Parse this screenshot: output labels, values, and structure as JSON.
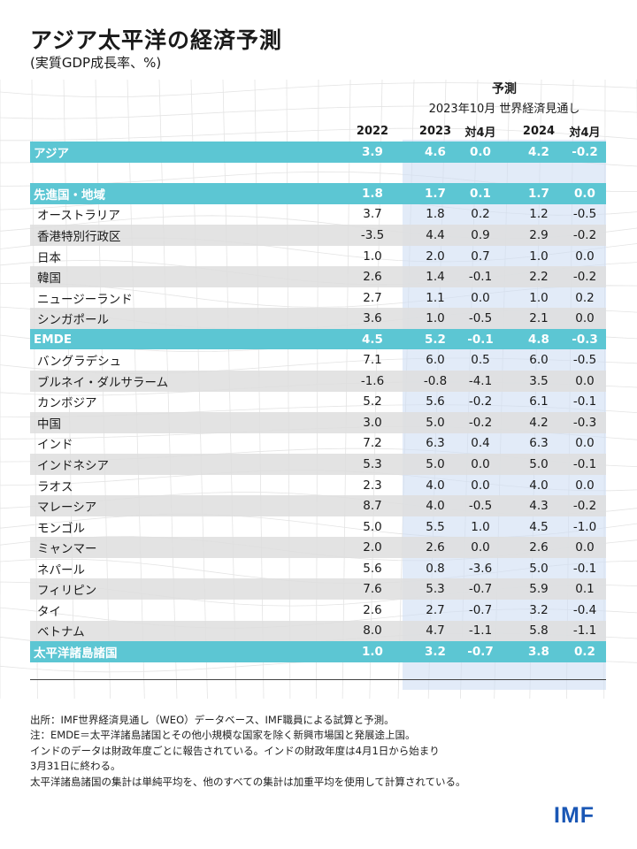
{
  "title": "アジア太平洋の経済予測",
  "subtitle": "(実質GDP成長率、%)",
  "forecast_header": {
    "label": "予測",
    "source": "2023年10月 世界経済見通し"
  },
  "columns": [
    "",
    "2022",
    "2023",
    "対4月",
    "2024",
    "対4月"
  ],
  "rows": [
    {
      "label": "アジア",
      "type": "total",
      "v": [
        "3.9",
        "4.6",
        "0.0",
        "4.2",
        "-0.2"
      ]
    },
    {
      "label": "",
      "type": "blank",
      "v": [
        "",
        "",
        "",
        "",
        ""
      ]
    },
    {
      "label": "先進国・地域",
      "type": "total",
      "v": [
        "1.8",
        "1.7",
        "0.1",
        "1.7",
        "0.0"
      ]
    },
    {
      "label": "オーストラリア",
      "type": "plain",
      "v": [
        "3.7",
        "1.8",
        "0.2",
        "1.2",
        "-0.5"
      ]
    },
    {
      "label": "香港特別行政区",
      "type": "alt",
      "v": [
        "-3.5",
        "4.4",
        "0.9",
        "2.9",
        "-0.2"
      ]
    },
    {
      "label": "日本",
      "type": "plain",
      "v": [
        "1.0",
        "2.0",
        "0.7",
        "1.0",
        "0.0"
      ]
    },
    {
      "label": "韓国",
      "type": "alt",
      "v": [
        "2.6",
        "1.4",
        "-0.1",
        "2.2",
        "-0.2"
      ]
    },
    {
      "label": "ニュージーランド",
      "type": "plain",
      "v": [
        "2.7",
        "1.1",
        "0.0",
        "1.0",
        "0.2"
      ]
    },
    {
      "label": "シンガポール",
      "type": "alt",
      "v": [
        "3.6",
        "1.0",
        "-0.5",
        "2.1",
        "0.0"
      ]
    },
    {
      "label": "EMDE",
      "type": "total",
      "v": [
        "4.5",
        "5.2",
        "-0.1",
        "4.8",
        "-0.3"
      ]
    },
    {
      "label": "バングラデシュ",
      "type": "plain",
      "v": [
        "7.1",
        "6.0",
        "0.5",
        "6.0",
        "-0.5"
      ]
    },
    {
      "label": "ブルネイ・ダルサラーム",
      "type": "alt",
      "v": [
        "-1.6",
        "-0.8",
        "-4.1",
        "3.5",
        "0.0"
      ]
    },
    {
      "label": "カンボジア",
      "type": "plain",
      "v": [
        "5.2",
        "5.6",
        "-0.2",
        "6.1",
        "-0.1"
      ]
    },
    {
      "label": "中国",
      "type": "alt",
      "v": [
        "3.0",
        "5.0",
        "-0.2",
        "4.2",
        "-0.3"
      ]
    },
    {
      "label": "インド",
      "type": "plain",
      "v": [
        "7.2",
        "6.3",
        "0.4",
        "6.3",
        "0.0"
      ]
    },
    {
      "label": "インドネシア",
      "type": "alt",
      "v": [
        "5.3",
        "5.0",
        "0.0",
        "5.0",
        "-0.1"
      ]
    },
    {
      "label": "ラオス",
      "type": "plain",
      "v": [
        "2.3",
        "4.0",
        "0.0",
        "4.0",
        "0.0"
      ]
    },
    {
      "label": "マレーシア",
      "type": "alt",
      "v": [
        "8.7",
        "4.0",
        "-0.5",
        "4.3",
        "-0.2"
      ]
    },
    {
      "label": "モンゴル",
      "type": "plain",
      "v": [
        "5.0",
        "5.5",
        "1.0",
        "4.5",
        "-1.0"
      ]
    },
    {
      "label": "ミャンマー",
      "type": "alt",
      "v": [
        "2.0",
        "2.6",
        "0.0",
        "2.6",
        "0.0"
      ]
    },
    {
      "label": "ネパール",
      "type": "plain",
      "v": [
        "5.6",
        "0.8",
        "-3.6",
        "5.0",
        "-0.1"
      ]
    },
    {
      "label": "フィリピン",
      "type": "alt",
      "v": [
        "7.6",
        "5.3",
        "-0.7",
        "5.9",
        "0.1"
      ]
    },
    {
      "label": "タイ",
      "type": "plain",
      "v": [
        "2.6",
        "2.7",
        "-0.7",
        "3.2",
        "-0.4"
      ]
    },
    {
      "label": "ベトナム",
      "type": "alt",
      "v": [
        "8.0",
        "4.7",
        "-1.1",
        "5.8",
        "-1.1"
      ]
    },
    {
      "label": "太平洋諸島諸国",
      "type": "total",
      "v": [
        "1.0",
        "3.2",
        "-0.7",
        "3.8",
        "0.2"
      ]
    }
  ],
  "notes": [
    "出所：IMF世界経済見通し（WEO）データベース、IMF職員による試算と予測。",
    "注：EMDE＝太平洋諸島諸国とその他小規模な国家を除く新興市場国と発展途上国。",
    "インドのデータは財政年度ごとに報告されている。インドの財政年度は4月1日から始まり",
    "3月31日に終わる。",
    "太平洋諸島諸国の集計は単純平均を、他のすべての集計は加重平均を使用して計算されている。"
  ],
  "logo": "IMF",
  "colors": {
    "total_row": "#5cc6d3",
    "projection_band": "#cedef4",
    "logo": "#1a57b5",
    "alt_row": "#dedede"
  }
}
